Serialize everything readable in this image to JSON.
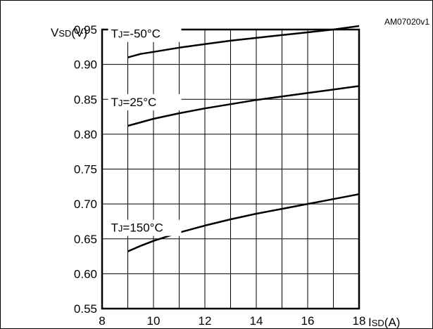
{
  "figure_code": "AM07020v1",
  "chart_data": {
    "type": "line",
    "xlabel_main": "I",
    "xlabel_sub": "SD",
    "xlabel_unit": "(A)",
    "ylabel_main": "V",
    "ylabel_sub": "SD",
    "ylabel_unit": "(V)",
    "xlim": [
      8,
      18
    ],
    "ylim": [
      0.55,
      0.95
    ],
    "x_ticks": [
      "8",
      "10",
      "12",
      "14",
      "16",
      "18"
    ],
    "y_ticks": [
      "0.55",
      "0.60",
      "0.65",
      "0.70",
      "0.75",
      "0.80",
      "0.85",
      "0.90",
      "0.95"
    ],
    "grid": true,
    "series": [
      {
        "label_main": "T",
        "label_sub": "J",
        "label_rest": "=-50°C",
        "x": [
          9,
          9.5,
          10,
          11,
          12,
          13,
          14,
          15,
          16,
          17,
          18
        ],
        "y": [
          0.91,
          0.915,
          0.918,
          0.924,
          0.929,
          0.934,
          0.938,
          0.942,
          0.946,
          0.95,
          0.955
        ]
      },
      {
        "label_main": "T",
        "label_sub": "J",
        "label_rest": "=25°C",
        "x": [
          9,
          9.5,
          10,
          11,
          12,
          13,
          14,
          15,
          16,
          17,
          18
        ],
        "y": [
          0.812,
          0.817,
          0.822,
          0.83,
          0.837,
          0.843,
          0.849,
          0.854,
          0.859,
          0.864,
          0.869
        ]
      },
      {
        "label_main": "T",
        "label_sub": "J",
        "label_rest": "=150°C",
        "x": [
          9,
          9.5,
          10,
          11,
          12,
          13,
          14,
          15,
          16,
          17,
          18
        ],
        "y": [
          0.632,
          0.64,
          0.647,
          0.659,
          0.669,
          0.678,
          0.686,
          0.693,
          0.7,
          0.707,
          0.714
        ]
      }
    ]
  }
}
